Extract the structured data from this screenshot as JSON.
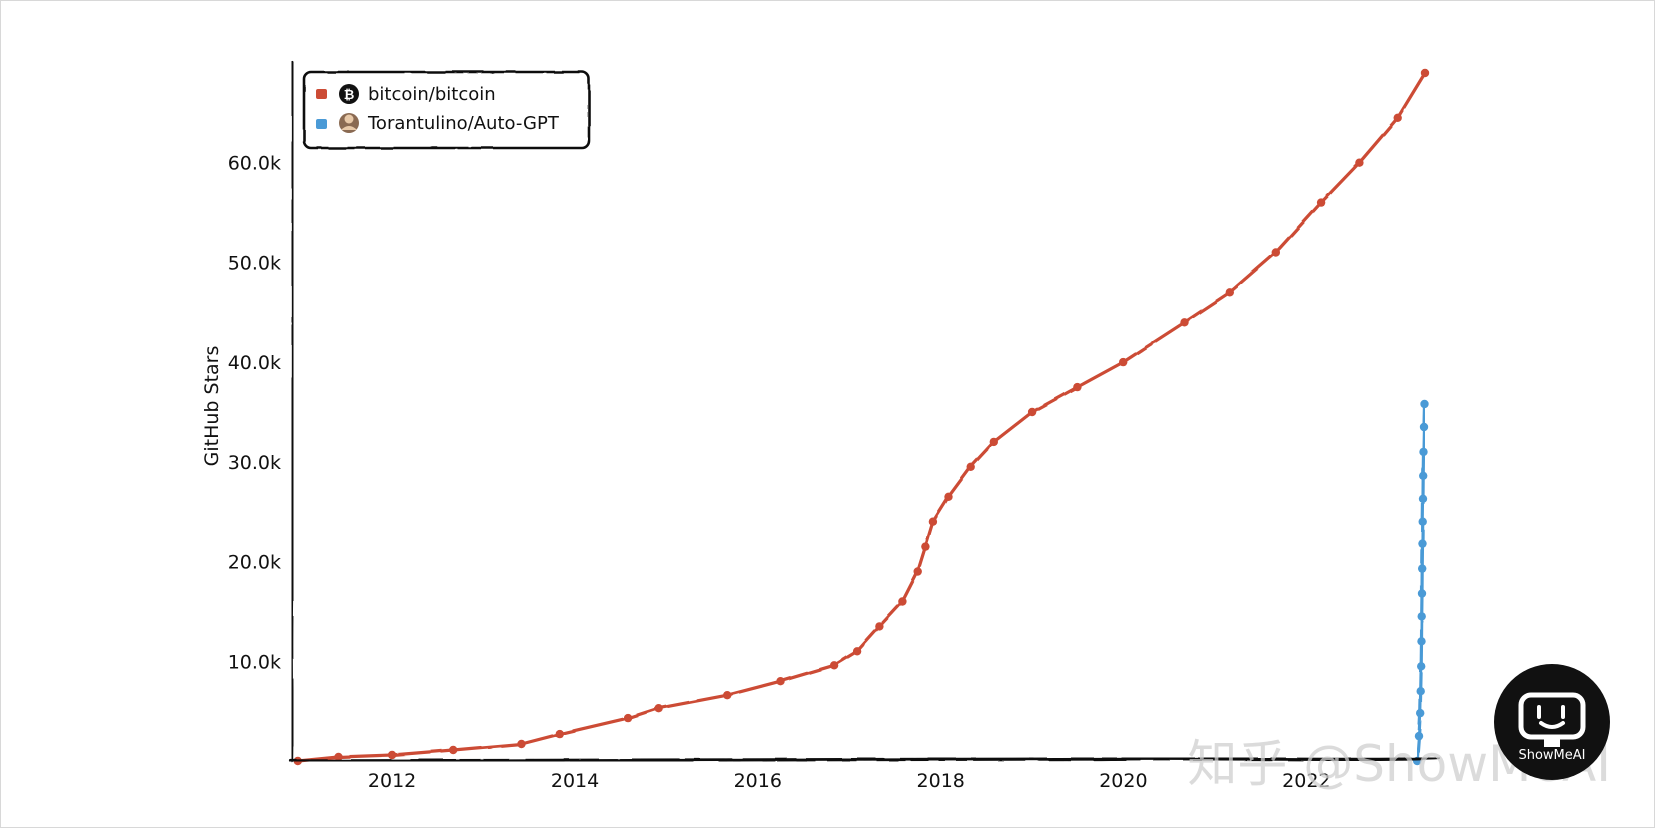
{
  "chart_data": {
    "type": "line",
    "title": "",
    "xlabel": "",
    "ylabel": "GitHub Stars",
    "x_ticks": [
      "2012",
      "2014",
      "2016",
      "2018",
      "2020",
      "2022"
    ],
    "y_ticks": [
      "10.0k",
      "20.0k",
      "30.0k",
      "40.0k",
      "50.0k",
      "60.0k"
    ],
    "xlim": [
      "2010-12-01",
      "2023-06-15"
    ],
    "ylim": [
      0,
      70000
    ],
    "grid": false,
    "legend_position": "top-left",
    "series": [
      {
        "name": "bitcoin/bitcoin",
        "color": "#cc4b35",
        "icon": "bitcoin-logo-icon",
        "points": [
          [
            "2010-12-20",
            0
          ],
          [
            "2011-06-01",
            400
          ],
          [
            "2012-01-01",
            600
          ],
          [
            "2012-09-01",
            1100
          ],
          [
            "2013-06-01",
            1700
          ],
          [
            "2013-11-01",
            2700
          ],
          [
            "2014-08-01",
            4300
          ],
          [
            "2014-12-01",
            5300
          ],
          [
            "2015-09-01",
            6600
          ],
          [
            "2016-04-01",
            8000
          ],
          [
            "2016-11-01",
            9600
          ],
          [
            "2017-02-01",
            11000
          ],
          [
            "2017-05-01",
            13500
          ],
          [
            "2017-08-01",
            16000
          ],
          [
            "2017-10-01",
            19000
          ],
          [
            "2017-11-01",
            21500
          ],
          [
            "2017-12-01",
            24000
          ],
          [
            "2018-02-01",
            26500
          ],
          [
            "2018-05-01",
            29500
          ],
          [
            "2018-08-01",
            32000
          ],
          [
            "2019-01-01",
            35000
          ],
          [
            "2019-07-01",
            37500
          ],
          [
            "2019-12-31",
            40000
          ],
          [
            "2020-09-01",
            44000
          ],
          [
            "2021-03-01",
            47000
          ],
          [
            "2021-09-01",
            51000
          ],
          [
            "2022-03-01",
            56000
          ],
          [
            "2022-08-01",
            60000
          ],
          [
            "2023-01-01",
            64500
          ],
          [
            "2023-04-20",
            69000
          ]
        ]
      },
      {
        "name": "Torantulino/Auto-GPT",
        "color": "#4a9ad6",
        "icon": "user-avatar-icon",
        "points": [
          [
            "2023-03-20",
            0
          ],
          [
            "2023-03-27",
            2500
          ],
          [
            "2023-04-01",
            4800
          ],
          [
            "2023-04-03",
            7000
          ],
          [
            "2023-04-05",
            9500
          ],
          [
            "2023-04-06",
            12000
          ],
          [
            "2023-04-07",
            14500
          ],
          [
            "2023-04-08",
            16800
          ],
          [
            "2023-04-09",
            19300
          ],
          [
            "2023-04-10",
            21800
          ],
          [
            "2023-04-11",
            24000
          ],
          [
            "2023-04-12",
            26300
          ],
          [
            "2023-04-13",
            28600
          ],
          [
            "2023-04-14",
            31000
          ],
          [
            "2023-04-16",
            33500
          ],
          [
            "2023-04-18",
            35800
          ]
        ]
      }
    ]
  },
  "watermark": {
    "text": "知乎 @ShowMeAI",
    "badge_text": "ShowMeAI"
  }
}
